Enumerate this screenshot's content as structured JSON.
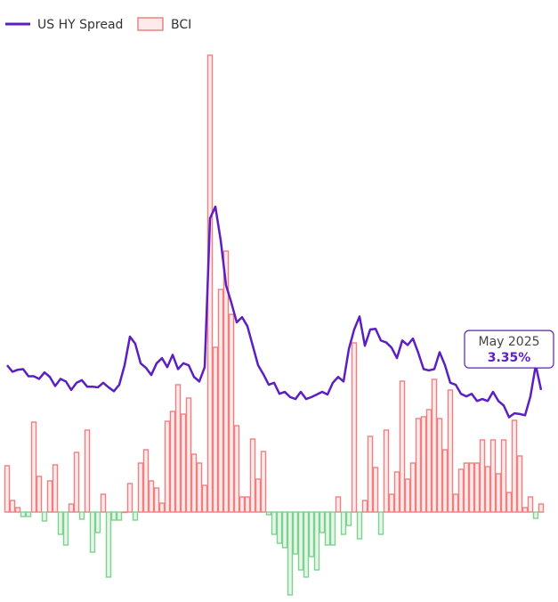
{
  "chart_data": {
    "type": "combo",
    "ylim": [
      -0.21,
      8.42
    ],
    "y2lim": [
      -9.5,
      53.5
    ],
    "series": [
      {
        "name": "US HY Spread",
        "type": "line",
        "axis": "y",
        "color": "#5b1fc2",
        "values": [
          3.35,
          3.25,
          3.28,
          3.29,
          3.18,
          3.18,
          3.14,
          3.24,
          3.17,
          3.03,
          3.14,
          3.1,
          2.97,
          3.08,
          3.12,
          3.02,
          3.02,
          3.01,
          3.08,
          3.01,
          2.95,
          3.05,
          3.35,
          3.79,
          3.68,
          3.38,
          3.31,
          3.2,
          3.38,
          3.46,
          3.32,
          3.51,
          3.29,
          3.38,
          3.35,
          3.17,
          3.1,
          3.32,
          5.61,
          5.79,
          5.27,
          4.58,
          4.31,
          4.01,
          4.09,
          3.95,
          3.65,
          3.35,
          3.21,
          3.05,
          3.08,
          2.91,
          2.94,
          2.86,
          2.83,
          2.94,
          2.83,
          2.86,
          2.9,
          2.94,
          2.9,
          3.08,
          3.17,
          3.1,
          3.6,
          3.9,
          4.1,
          3.65,
          3.9,
          3.91,
          3.73,
          3.7,
          3.62,
          3.46,
          3.73,
          3.66,
          3.76,
          3.54,
          3.29,
          3.27,
          3.29,
          3.55,
          3.35,
          3.08,
          3.05,
          2.91,
          2.87,
          2.91,
          2.8,
          2.83,
          2.8,
          2.94,
          2.8,
          2.73,
          2.55,
          2.61,
          2.6,
          2.58,
          2.87,
          3.35,
          2.97
        ]
      },
      {
        "name": "BCI",
        "type": "bar",
        "axis": "y2",
        "color": "#f08080",
        "negative_color": "#7fd18f",
        "values": [
          5.2,
          1.3,
          0.5,
          -0.5,
          -0.5,
          10.1,
          4,
          -1,
          3.5,
          5.3,
          -2.5,
          -3.7,
          0.9,
          6.7,
          -0.8,
          9.2,
          -4.5,
          -2.3,
          2,
          -7.3,
          -0.9,
          -0.9,
          0,
          3.2,
          -0.9,
          5.5,
          7,
          3.5,
          2.7,
          1,
          10.2,
          11.3,
          14.3,
          11,
          12.8,
          6.5,
          5.5,
          3,
          51.3,
          18.5,
          25,
          29.3,
          22.2,
          9.7,
          1.7,
          1.7,
          8.2,
          3.7,
          6.8,
          -0.3,
          -2.5,
          -3.5,
          -4,
          -9.3,
          -4.7,
          -6.5,
          -7.3,
          -5,
          -6.5,
          -2.3,
          -3.7,
          -3.7,
          1.7,
          -2.5,
          -1.5,
          19,
          -3,
          1.3,
          8.5,
          5,
          -2.5,
          9.2,
          2,
          4.5,
          14.7,
          3.7,
          5.5,
          10.5,
          10.7,
          11.5,
          14.9,
          10.5,
          7,
          13.7,
          2,
          4.8,
          5.5,
          5.5,
          5.5,
          8.1,
          5.1,
          8.1,
          4.3,
          8.1,
          2.2,
          10.3,
          6.3,
          0.5,
          1.7,
          -0.7,
          0.9
        ]
      }
    ],
    "annotation": {
      "label": "May 2025",
      "value": 3.35,
      "value_label": "3.35%"
    }
  }
}
